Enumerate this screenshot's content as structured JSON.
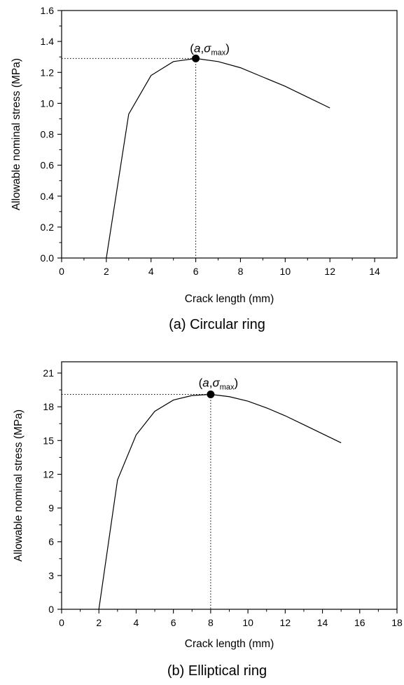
{
  "chart_data": [
    {
      "type": "line",
      "caption": "(a) Circular ring",
      "xlabel": "Crack length (mm)",
      "ylabel": "Allowable nominal stress (MPa)",
      "xlim": [
        0,
        15
      ],
      "ylim": [
        0.0,
        1.6
      ],
      "xticks": [
        "0",
        "2",
        "4",
        "6",
        "8",
        "10",
        "12",
        "14"
      ],
      "yticks": [
        "0.0",
        "0.2",
        "0.4",
        "0.6",
        "0.8",
        "1.0",
        "1.2",
        "1.4",
        "1.6"
      ],
      "x": [
        2,
        3,
        4,
        5,
        6,
        7,
        8,
        9,
        10,
        11,
        12
      ],
      "y": [
        0.0,
        0.93,
        1.18,
        1.27,
        1.29,
        1.27,
        1.23,
        1.17,
        1.11,
        1.04,
        0.97
      ],
      "peak": {
        "x": 6,
        "y": 1.29,
        "label": "(a,σmax)",
        "label_a": "a",
        "label_sigma": "σ",
        "label_sub": "max"
      },
      "color": "#000000"
    },
    {
      "type": "line",
      "caption": "(b) Elliptical ring",
      "xlabel": "Crack length (mm)",
      "ylabel": "Allowable nominal stress (MPa)",
      "xlim": [
        0,
        18
      ],
      "ylim": [
        0,
        22
      ],
      "xticks": [
        "0",
        "2",
        "4",
        "6",
        "8",
        "10",
        "12",
        "14",
        "16",
        "18"
      ],
      "yticks": [
        "0",
        "3",
        "6",
        "9",
        "12",
        "15",
        "18",
        "21"
      ],
      "x": [
        2,
        3,
        4,
        5,
        6,
        7,
        8,
        9,
        10,
        11,
        12,
        13,
        14,
        15
      ],
      "y": [
        0.0,
        11.5,
        15.5,
        17.6,
        18.6,
        19.0,
        19.1,
        18.9,
        18.5,
        17.9,
        17.2,
        16.4,
        15.6,
        14.8
      ],
      "peak": {
        "x": 8,
        "y": 19.1,
        "label": "(a,σmax)",
        "label_a": "a",
        "label_sigma": "σ",
        "label_sub": "max"
      },
      "color": "#000000"
    }
  ]
}
